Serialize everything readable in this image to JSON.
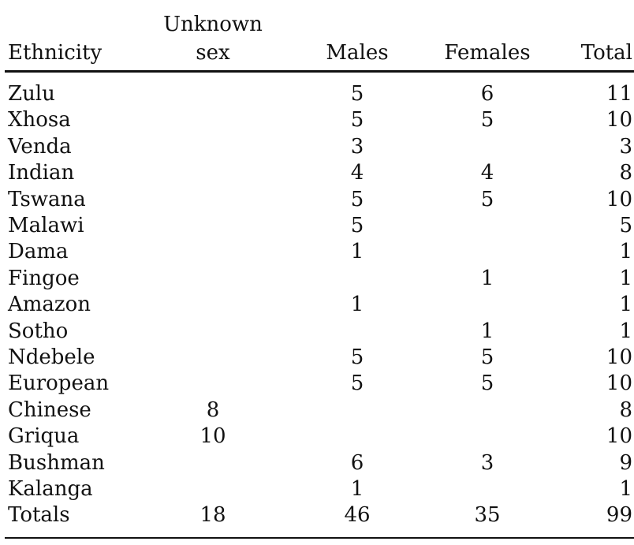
{
  "header": {
    "ethnicity": "Ethnicity",
    "unknown_line1": "Unknown",
    "unknown_line2": "sex",
    "males": "Males",
    "females": "Females",
    "total": "Total"
  },
  "rows": [
    {
      "ethnicity": "Zulu",
      "unknown": "",
      "males": "5",
      "females": "6",
      "total": "11"
    },
    {
      "ethnicity": "Xhosa",
      "unknown": "",
      "males": "5",
      "females": "5",
      "total": "10"
    },
    {
      "ethnicity": "Venda",
      "unknown": "",
      "males": "3",
      "females": "",
      "total": "3"
    },
    {
      "ethnicity": "Indian",
      "unknown": "",
      "males": "4",
      "females": "4",
      "total": "8"
    },
    {
      "ethnicity": "Tswana",
      "unknown": "",
      "males": "5",
      "females": "5",
      "total": "10"
    },
    {
      "ethnicity": "Malawi",
      "unknown": "",
      "males": "5",
      "females": "",
      "total": "5"
    },
    {
      "ethnicity": "Dama",
      "unknown": "",
      "males": "1",
      "females": "",
      "total": "1"
    },
    {
      "ethnicity": "Fingoe",
      "unknown": "",
      "males": "",
      "females": "1",
      "total": "1"
    },
    {
      "ethnicity": "Amazon",
      "unknown": "",
      "males": "1",
      "females": "",
      "total": "1"
    },
    {
      "ethnicity": "Sotho",
      "unknown": "",
      "males": "",
      "females": "1",
      "total": "1"
    },
    {
      "ethnicity": "Ndebele",
      "unknown": "",
      "males": "5",
      "females": "5",
      "total": "10"
    },
    {
      "ethnicity": "European",
      "unknown": "",
      "males": "5",
      "females": "5",
      "total": "10"
    },
    {
      "ethnicity": "Chinese",
      "unknown": "8",
      "males": "",
      "females": "",
      "total": "8"
    },
    {
      "ethnicity": "Griqua",
      "unknown": "10",
      "males": "",
      "females": "",
      "total": "10"
    },
    {
      "ethnicity": "Bushman",
      "unknown": "",
      "males": "6",
      "females": "3",
      "total": "9"
    },
    {
      "ethnicity": "Kalanga",
      "unknown": "",
      "males": "1",
      "females": "",
      "total": "1"
    },
    {
      "ethnicity": "Totals",
      "unknown": "18",
      "males": "46",
      "females": "35",
      "total": "99"
    }
  ]
}
